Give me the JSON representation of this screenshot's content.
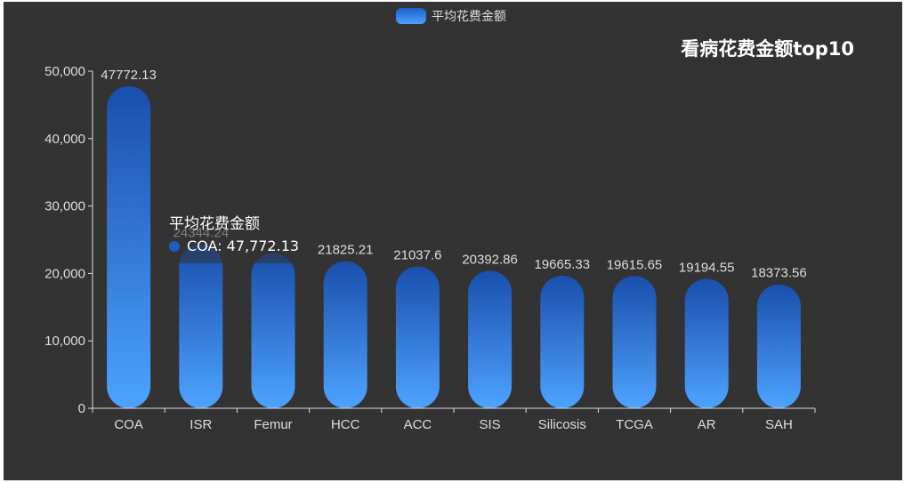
{
  "title": "看病花费金额top10",
  "legend": {
    "label": "平均花费金额"
  },
  "tooltip": {
    "title": "平均花费金额",
    "row": "COA: 47,772.13"
  },
  "colors": {
    "background": "#333333",
    "bar_top": "#1a4fad",
    "bar_bottom": "#4da3ff",
    "axis": "#dddddd"
  },
  "chart_data": {
    "type": "bar",
    "title": "看病花费金额top10",
    "categories": [
      "COA",
      "ISR",
      "Femur",
      "HCC",
      "ACC",
      "SIS",
      "Silicosis",
      "TCGA",
      "AR",
      "SAH"
    ],
    "series": [
      {
        "name": "平均花费金额",
        "values": [
          47772.13,
          24344.24,
          23000,
          21825.21,
          21037.6,
          20392.86,
          19665.33,
          19615.65,
          19194.55,
          18373.56
        ],
        "labels": [
          "47772.13",
          "24344.24",
          "",
          "21825.21",
          "21037.6",
          "20392.86",
          "19665.33",
          "19615.65",
          "19194.55",
          "18373.56"
        ]
      }
    ],
    "ylim": [
      0,
      50000
    ],
    "yticks": [
      0,
      10000,
      20000,
      30000,
      40000,
      50000
    ],
    "ytick_labels": [
      "0",
      "10,000",
      "20,000",
      "30,000",
      "40,000",
      "50,000"
    ],
    "legend_position": "top-center",
    "grid": false
  }
}
